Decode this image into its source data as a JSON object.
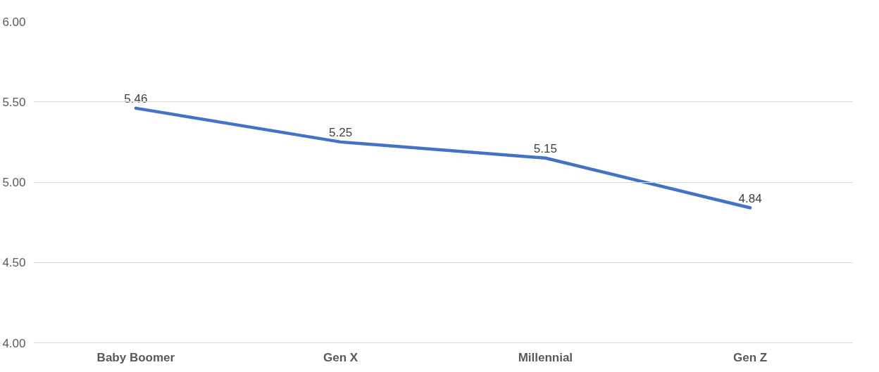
{
  "chart_data": {
    "type": "line",
    "categories": [
      "Baby Boomer",
      "Gen X",
      "Millennial",
      "Gen Z"
    ],
    "series": [
      {
        "color": "#4472c4",
        "values": [
          5.46,
          5.25,
          5.15,
          4.84
        ]
      }
    ],
    "ylim": [
      4.0,
      6.0
    ],
    "yticks": [
      {
        "value": 4.0,
        "label": "4.00"
      },
      {
        "value": 4.5,
        "label": "4.50"
      },
      {
        "value": 5.0,
        "label": "5.00"
      },
      {
        "value": 5.5,
        "label": "5.50"
      },
      {
        "value": 6.0,
        "label": "6.00"
      }
    ],
    "grid": "y",
    "data_labels": true,
    "marker": "none",
    "line_style": "solid"
  }
}
